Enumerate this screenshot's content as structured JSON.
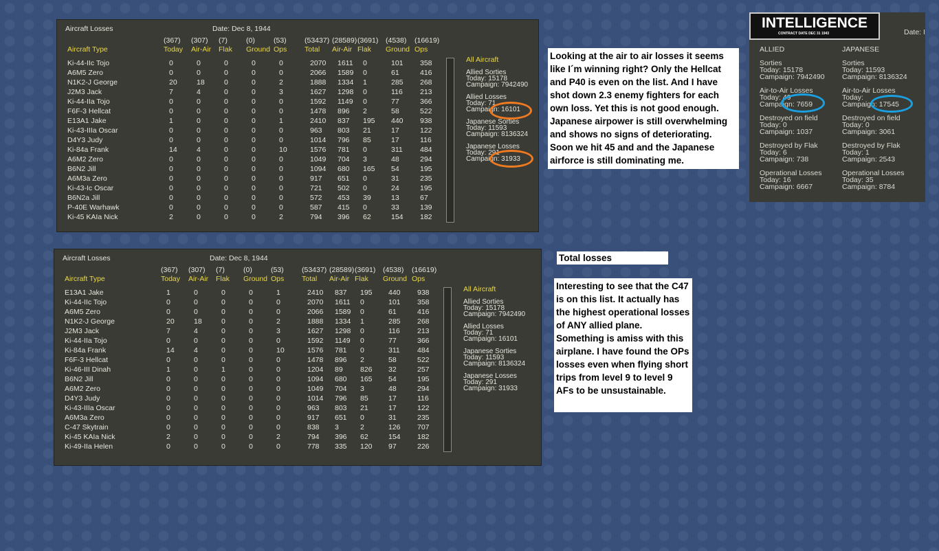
{
  "panels": [
    {
      "title": "Aircraft Losses",
      "date": "Date: Dec 8, 1944",
      "totals": [
        "(367)",
        "(307)",
        "(7)",
        "(0)",
        "(53)",
        "(53437)",
        "(28589)",
        "(3691)",
        "(4538)",
        "(16619)"
      ],
      "columns": [
        "Aircraft Type",
        "Today",
        "Air-Air",
        "Flak",
        "Ground",
        "Ops",
        "Total",
        "Air-Air",
        "Flak",
        "Ground",
        "Ops"
      ],
      "rows": [
        [
          "Ki-44-IIc Tojo",
          0,
          0,
          0,
          0,
          0,
          2070,
          1611,
          0,
          101,
          358
        ],
        [
          "A6M5 Zero",
          0,
          0,
          0,
          0,
          0,
          2066,
          1589,
          0,
          61,
          416
        ],
        [
          "N1K2-J George",
          20,
          18,
          0,
          0,
          2,
          1888,
          1334,
          1,
          285,
          268
        ],
        [
          "J2M3 Jack",
          7,
          4,
          0,
          0,
          3,
          1627,
          1298,
          0,
          116,
          213
        ],
        [
          "Ki-44-IIa Tojo",
          0,
          0,
          0,
          0,
          0,
          1592,
          1149,
          0,
          77,
          366
        ],
        [
          "F6F-3 Hellcat",
          0,
          0,
          0,
          0,
          0,
          1478,
          896,
          2,
          58,
          522
        ],
        [
          "E13A1 Jake",
          1,
          0,
          0,
          0,
          1,
          2410,
          837,
          195,
          440,
          938
        ],
        [
          "Ki-43-IIIa Oscar",
          0,
          0,
          0,
          0,
          0,
          963,
          803,
          21,
          17,
          122
        ],
        [
          "D4Y3 Judy",
          0,
          0,
          0,
          0,
          0,
          1014,
          796,
          85,
          17,
          116
        ],
        [
          "Ki-84a Frank",
          14,
          4,
          0,
          0,
          10,
          1576,
          781,
          0,
          311,
          484
        ],
        [
          "A6M2 Zero",
          0,
          0,
          0,
          0,
          0,
          1049,
          704,
          3,
          48,
          294
        ],
        [
          "B6N2 Jill",
          0,
          0,
          0,
          0,
          0,
          1094,
          680,
          165,
          54,
          195
        ],
        [
          "A6M3a Zero",
          0,
          0,
          0,
          0,
          0,
          917,
          651,
          0,
          31,
          235
        ],
        [
          "Ki-43-Ic Oscar",
          0,
          0,
          0,
          0,
          0,
          721,
          502,
          0,
          24,
          195
        ],
        [
          "B6N2a Jill",
          0,
          0,
          0,
          0,
          0,
          572,
          453,
          39,
          13,
          67
        ],
        [
          "P-40E Warhawk",
          0,
          0,
          0,
          0,
          0,
          587,
          415,
          0,
          33,
          139
        ],
        [
          "Ki-45 KAIa Nick",
          2,
          0,
          0,
          0,
          2,
          794,
          396,
          62,
          154,
          182
        ]
      ],
      "side": {
        "heading": "All Aircraft",
        "groups": [
          [
            "Allied Sorties",
            "Today: 15178",
            "Campaign: 7942490"
          ],
          [
            "Allied Losses",
            "Today: 71",
            "Campaign: 16101"
          ],
          [
            "Japanese Sorties",
            "Today: 11593",
            "Campaign: 8136324"
          ],
          [
            "Japanese Losses",
            "Today: 291",
            "Campaign: 31933"
          ]
        ]
      }
    },
    {
      "title": "Aircraft Losses",
      "date": "Date: Dec 8, 1944",
      "totals": [
        "(367)",
        "(307)",
        "(7)",
        "(0)",
        "(53)",
        "(53437)",
        "(28589)",
        "(3691)",
        "(4538)",
        "(16619)"
      ],
      "columns": [
        "Aircraft Type",
        "Today",
        "Air-Air",
        "Flak",
        "Ground",
        "Ops",
        "Total",
        "Air-Air",
        "Flak",
        "Ground",
        "Ops"
      ],
      "rows": [
        [
          "E13A1 Jake",
          1,
          0,
          0,
          0,
          1,
          2410,
          837,
          195,
          440,
          938
        ],
        [
          "Ki-44-IIc Tojo",
          0,
          0,
          0,
          0,
          0,
          2070,
          1611,
          0,
          101,
          358
        ],
        [
          "A6M5 Zero",
          0,
          0,
          0,
          0,
          0,
          2066,
          1589,
          0,
          61,
          416
        ],
        [
          "N1K2-J George",
          20,
          18,
          0,
          0,
          2,
          1888,
          1334,
          1,
          285,
          268
        ],
        [
          "J2M3 Jack",
          7,
          4,
          0,
          0,
          3,
          1627,
          1298,
          0,
          116,
          213
        ],
        [
          "Ki-44-IIa Tojo",
          0,
          0,
          0,
          0,
          0,
          1592,
          1149,
          0,
          77,
          366
        ],
        [
          "Ki-84a Frank",
          14,
          4,
          0,
          0,
          10,
          1576,
          781,
          0,
          311,
          484
        ],
        [
          "F6F-3 Hellcat",
          0,
          0,
          0,
          0,
          0,
          1478,
          896,
          2,
          58,
          522
        ],
        [
          "Ki-46-III Dinah",
          1,
          0,
          1,
          0,
          0,
          1204,
          89,
          826,
          32,
          257
        ],
        [
          "B6N2 Jill",
          0,
          0,
          0,
          0,
          0,
          1094,
          680,
          165,
          54,
          195
        ],
        [
          "A6M2 Zero",
          0,
          0,
          0,
          0,
          0,
          1049,
          704,
          3,
          48,
          294
        ],
        [
          "D4Y3 Judy",
          0,
          0,
          0,
          0,
          0,
          1014,
          796,
          85,
          17,
          116
        ],
        [
          "Ki-43-IIIa Oscar",
          0,
          0,
          0,
          0,
          0,
          963,
          803,
          21,
          17,
          122
        ],
        [
          "A6M3a Zero",
          0,
          0,
          0,
          0,
          0,
          917,
          651,
          0,
          31,
          235
        ],
        [
          "C-47 Skytrain",
          0,
          0,
          0,
          0,
          0,
          838,
          3,
          2,
          126,
          707
        ],
        [
          "Ki-45 KAIa Nick",
          2,
          0,
          0,
          0,
          2,
          794,
          396,
          62,
          154,
          182
        ],
        [
          "Ki-49-IIa Helen",
          0,
          0,
          0,
          0,
          0,
          778,
          335,
          120,
          97,
          226
        ]
      ],
      "side": {
        "heading": "All Aircraft",
        "groups": [
          [
            "Allied Sorties",
            "Today: 15178",
            "Campaign: 7942490"
          ],
          [
            "Allied Losses",
            "Today: 71",
            "Campaign: 16101"
          ],
          [
            "Japanese Sorties",
            "Today: 11593",
            "Campaign: 8136324"
          ],
          [
            "Japanese Losses",
            "Today: 291",
            "Campaign: 31933"
          ]
        ]
      }
    }
  ],
  "intelligence": {
    "logo": "INTELLIGENCE",
    "subtitle": "CONTRACT DATE DEC 31 1943",
    "date": "Date: I",
    "columns": [
      "ALLIED",
      "JAPANESE"
    ],
    "sections": [
      [
        [
          "Sorties",
          "Today: 15178",
          "Campaign: 7942490"
        ],
        [
          "Sorties",
          "Today: 11593",
          "Campaign: 8136324"
        ]
      ],
      [
        [
          "Air-to-Air Losses",
          "Today: 49",
          "Campaign: 7659"
        ],
        [
          "Air-to-Air Losses",
          "Today:",
          "Campaign: 17545"
        ]
      ],
      [
        [
          "Destroyed on field",
          "Today: 0",
          "Campaign: 1037"
        ],
        [
          "Destroyed on field",
          "Today: 0",
          "Campaign: 3061"
        ]
      ],
      [
        [
          "Destroyed by Flak",
          "Today: 6",
          "Campaign: 738"
        ],
        [
          "Destroyed by Flak",
          "Today: 1",
          "Campaign: 2543"
        ]
      ],
      [
        [
          "Operational Losses",
          "Today: 16",
          "Campaign: 6667"
        ],
        [
          "Operational Losses",
          "Today: 35",
          "Campaign: 8784"
        ]
      ]
    ]
  },
  "notes": {
    "comment_1": "Looking at the air to air losses it seems like I´m winning right? Only the Hellcat and P40 is even on the list. And I have shot down 2.3 enemy fighters for each own loss. Yet this is not good enough. Japanese airpower is still overwhelming and shows no signs of deteriorating. Soon we hit 45 and and the Japanese airforce is still dominating me.",
    "heading": "Total losses",
    "comment_2": "Interesting to see that the C47 is on this list. It actually has the highest operational losses of ANY allied plane. Something is amiss with this airplane. I have found the OPs losses even when flying short trips from level 9 to level 9 AFs to be unsustainable."
  }
}
